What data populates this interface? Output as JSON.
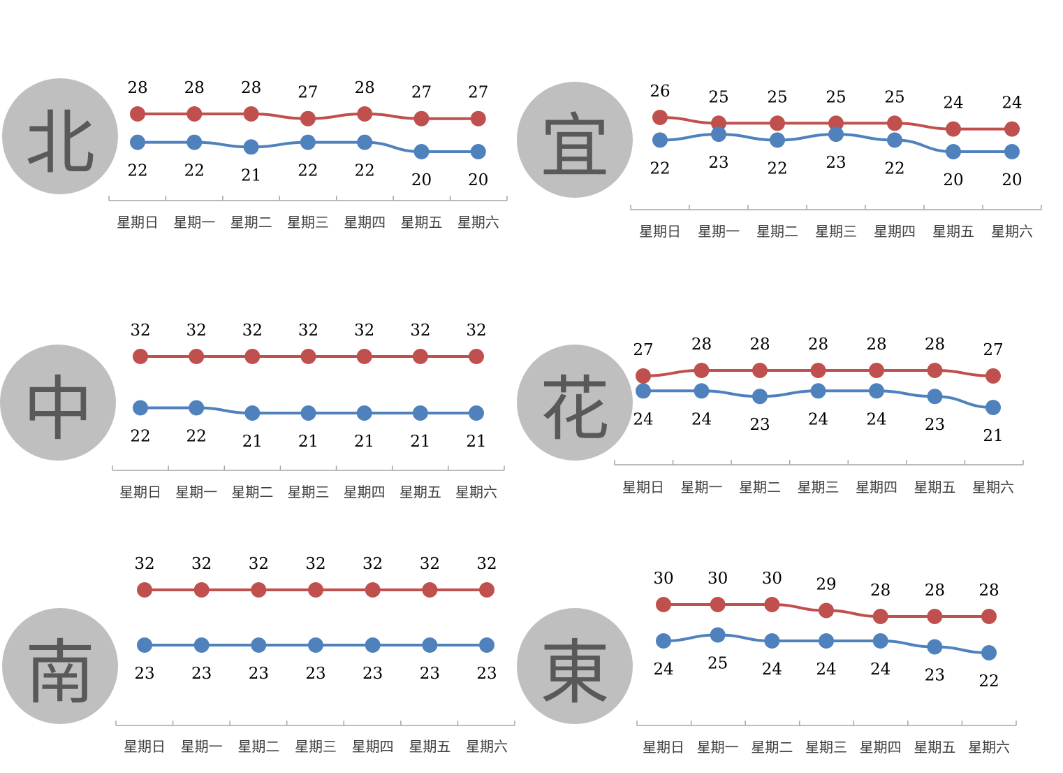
{
  "colors": {
    "high": "#c0504d",
    "low": "#4f81bd",
    "circle": "#bfbfbf",
    "circle_text": "#595959",
    "axis": "#a6a6a6"
  },
  "chart_data": [
    {
      "type": "line",
      "region": "北",
      "categories": [
        "星期日",
        "星期一",
        "星期二",
        "星期三",
        "星期四",
        "星期五",
        "星期六"
      ],
      "series": [
        {
          "values": [
            28,
            28,
            28,
            27,
            28,
            27,
            27
          ]
        },
        {
          "values": [
            22,
            22,
            21,
            22,
            22,
            20,
            20
          ]
        }
      ]
    },
    {
      "type": "line",
      "region": "宜",
      "categories": [
        "星期日",
        "星期一",
        "星期二",
        "星期三",
        "星期四",
        "星期五",
        "星期六"
      ],
      "series": [
        {
          "values": [
            26,
            25,
            25,
            25,
            25,
            24,
            24
          ]
        },
        {
          "values": [
            22,
            23,
            22,
            23,
            22,
            20,
            20
          ]
        }
      ]
    },
    {
      "type": "line",
      "region": "中",
      "categories": [
        "星期日",
        "星期一",
        "星期二",
        "星期三",
        "星期四",
        "星期五",
        "星期六"
      ],
      "series": [
        {
          "values": [
            32,
            32,
            32,
            32,
            32,
            32,
            32
          ]
        },
        {
          "values": [
            22,
            22,
            21,
            21,
            21,
            21,
            21
          ]
        }
      ]
    },
    {
      "type": "line",
      "region": "花",
      "categories": [
        "星期日",
        "星期一",
        "星期二",
        "星期三",
        "星期四",
        "星期五",
        "星期六"
      ],
      "series": [
        {
          "values": [
            27,
            28,
            28,
            28,
            28,
            28,
            27
          ]
        },
        {
          "values": [
            24,
            24,
            23,
            24,
            24,
            23,
            21
          ]
        }
      ]
    },
    {
      "type": "line",
      "region": "南",
      "categories": [
        "星期日",
        "星期一",
        "星期二",
        "星期三",
        "星期四",
        "星期五",
        "星期六"
      ],
      "series": [
        {
          "values": [
            32,
            32,
            32,
            32,
            32,
            32,
            32
          ]
        },
        {
          "values": [
            23,
            23,
            23,
            23,
            23,
            23,
            23
          ]
        }
      ]
    },
    {
      "type": "line",
      "region": "東",
      "categories": [
        "星期日",
        "星期一",
        "星期二",
        "星期三",
        "星期四",
        "星期五",
        "星期六"
      ],
      "series": [
        {
          "values": [
            30,
            30,
            30,
            29,
            28,
            28,
            28
          ]
        },
        {
          "values": [
            24,
            25,
            24,
            24,
            24,
            23,
            22
          ]
        }
      ]
    }
  ]
}
